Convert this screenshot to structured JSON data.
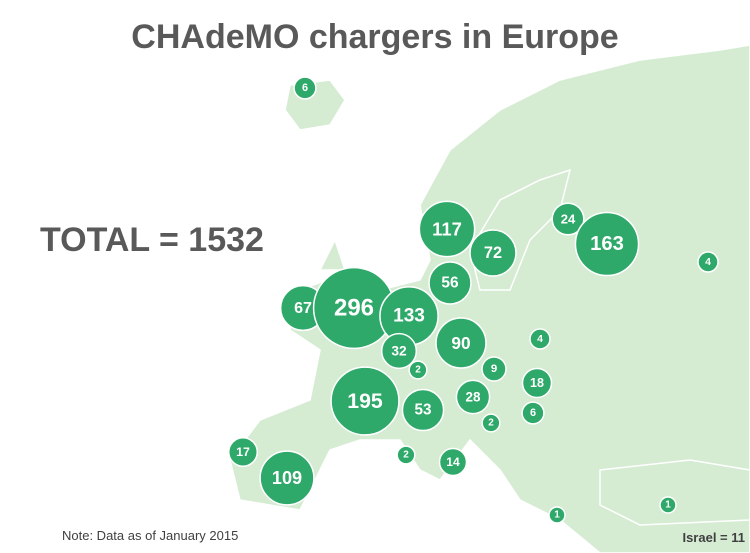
{
  "title": "CHAdeMO chargers in Europe",
  "total": "TOTAL = 1532",
  "note": "Note: Data as of January 2015",
  "israel": "Israel = 11",
  "bubbles": [
    {
      "value": 6
    },
    {
      "value": 117
    },
    {
      "value": 72
    },
    {
      "value": 24
    },
    {
      "value": 163
    },
    {
      "value": 4
    },
    {
      "value": 56
    },
    {
      "value": 67
    },
    {
      "value": 296
    },
    {
      "value": 133
    },
    {
      "value": 4
    },
    {
      "value": 90
    },
    {
      "value": 32
    },
    {
      "value": 2
    },
    {
      "value": 9
    },
    {
      "value": 18
    },
    {
      "value": 195
    },
    {
      "value": 53
    },
    {
      "value": 28
    },
    {
      "value": 6
    },
    {
      "value": 2
    },
    {
      "value": 17
    },
    {
      "value": 2
    },
    {
      "value": 14
    },
    {
      "value": 109
    },
    {
      "value": 1
    },
    {
      "value": 1
    }
  ]
}
